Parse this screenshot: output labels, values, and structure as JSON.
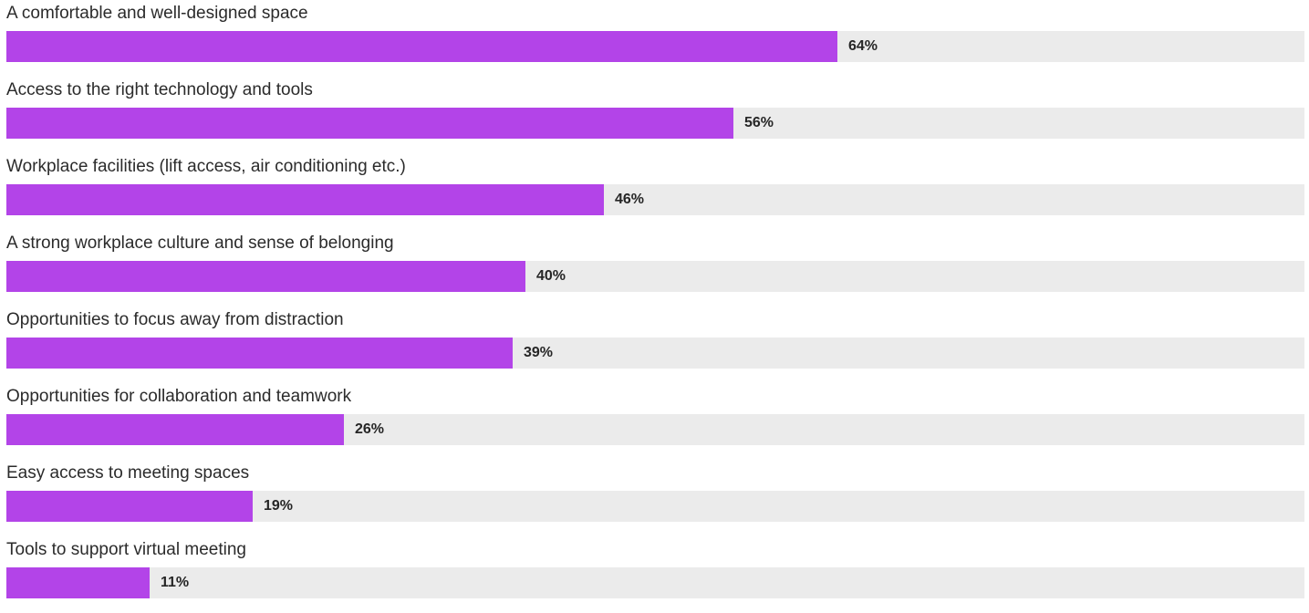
{
  "chart_data": {
    "type": "bar",
    "orientation": "horizontal",
    "title": "",
    "xlabel": "",
    "ylabel": "",
    "xlim": [
      0,
      100
    ],
    "grid": false,
    "legend": "none",
    "bar_color": "#b344e8",
    "track_color": "#ebebeb",
    "categories": [
      "A comfortable and well-designed space",
      "Access to the right technology and tools",
      "Workplace facilities (lift access, air conditioning etc.)",
      "A strong workplace culture and sense of belonging",
      "Opportunities to focus away from distraction",
      "Opportunities for collaboration and teamwork",
      "Easy access to meeting spaces",
      "Tools to support virtual meeting"
    ],
    "values": [
      64,
      56,
      46,
      40,
      39,
      26,
      19,
      11
    ],
    "value_labels": [
      "64%",
      "56%",
      "46%",
      "40%",
      "39%",
      "26%",
      "19%",
      "11%"
    ]
  }
}
